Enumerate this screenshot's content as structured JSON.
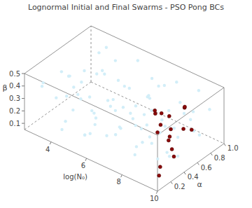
{
  "chart_data": {
    "type": "scatter3d",
    "title": "Lognormal Initial and Final Swarms - PSO Pong BCs",
    "x_label": "log(N₀)",
    "y_label": "α",
    "z_label": "β",
    "xlim": [
      2.5,
      10
    ],
    "xticks": [
      4,
      6,
      8,
      10
    ],
    "ylim": [
      0,
      1
    ],
    "yticks": [
      0.2,
      0.4,
      0.6,
      0.8,
      {
        "value": 1,
        "label": "1.0"
      }
    ],
    "zlim": [
      0.05,
      0.5
    ],
    "zticks": [
      0.1,
      0.2,
      0.3,
      0.4,
      0.5
    ],
    "series": [
      {
        "color": "#d2eef8",
        "marker": "circle",
        "points": [
          [
            3.1,
            0.12,
            0.42
          ],
          [
            4.2,
            0.35,
            0.31
          ],
          [
            5.6,
            0.08,
            0.18
          ],
          [
            6.8,
            0.77,
            0.45
          ],
          [
            7.9,
            0.22,
            0.12
          ],
          [
            9.1,
            0.64,
            0.37
          ],
          [
            3.6,
            0.91,
            0.22
          ],
          [
            4.9,
            0.53,
            0.48
          ],
          [
            6.1,
            0.41,
            0.09
          ],
          [
            7.3,
            0.15,
            0.33
          ],
          [
            8.6,
            0.87,
            0.2
          ],
          [
            9.7,
            0.33,
            0.41
          ],
          [
            2.8,
            0.6,
            0.27
          ],
          [
            4.5,
            0.72,
            0.14
          ],
          [
            5.2,
            0.26,
            0.39
          ],
          [
            6.5,
            0.95,
            0.3
          ],
          [
            7.6,
            0.48,
            0.24
          ],
          [
            8.9,
            0.05,
            0.46
          ],
          [
            3.9,
            0.19,
            0.07
          ],
          [
            5.9,
            0.67,
            0.35
          ],
          [
            7.1,
            0.84,
            0.11
          ],
          [
            8.2,
            0.39,
            0.43
          ],
          [
            9.4,
            0.79,
            0.16
          ],
          [
            3.3,
            0.45,
            0.36
          ],
          [
            4.7,
            0.03,
            0.25
          ],
          [
            6.3,
            0.58,
            0.21
          ],
          [
            7.8,
            0.69,
            0.49
          ],
          [
            9.9,
            0.17,
            0.29
          ],
          [
            2.6,
            0.83,
            0.12
          ],
          [
            5.4,
            0.93,
            0.44
          ],
          [
            6.9,
            0.31,
            0.4
          ],
          [
            8.4,
            0.11,
            0.26
          ],
          [
            4.1,
            0.62,
            0.05
          ],
          [
            5.7,
            0.44,
            0.28
          ],
          [
            7.4,
            0.98,
            0.38
          ],
          [
            9.2,
            0.52,
            0.08
          ],
          [
            3.5,
            0.29,
            0.47
          ],
          [
            6.0,
            0.14,
            0.32
          ],
          [
            8.0,
            0.57,
            0.17
          ],
          [
            9.6,
            0.89,
            0.34
          ],
          [
            2.9,
            0.37,
            0.19
          ],
          [
            4.4,
            0.86,
            0.4
          ],
          [
            5.0,
            0.7,
            0.1
          ],
          [
            6.6,
            0.24,
            0.47
          ],
          [
            7.2,
            0.63,
            0.06
          ],
          [
            8.7,
            0.46,
            0.31
          ],
          [
            3.8,
            0.74,
            0.3
          ],
          [
            5.3,
            0.16,
            0.13
          ],
          [
            6.2,
            0.88,
            0.23
          ],
          [
            7.7,
            0.06,
            0.38
          ],
          [
            9.0,
            0.27,
            0.14
          ],
          [
            4.0,
            0.5,
            0.43
          ],
          [
            5.8,
            0.97,
            0.16
          ],
          [
            7.0,
            0.43,
            0.27
          ],
          [
            8.3,
            0.76,
            0.08
          ],
          [
            9.8,
            0.59,
            0.45
          ],
          [
            3.2,
            0.66,
            0.09
          ],
          [
            4.8,
            0.4,
            0.2
          ],
          [
            6.4,
            0.02,
            0.34
          ],
          [
            8.8,
            0.94,
            0.42
          ],
          [
            2.7,
            0.21,
            0.33
          ],
          [
            5.1,
            0.81,
            0.26
          ],
          [
            6.7,
            0.55,
            0.15
          ],
          [
            8.1,
            0.28,
            0.21
          ],
          [
            9.3,
            0.1,
            0.35
          ],
          [
            3.4,
            0.99,
            0.39
          ],
          [
            4.6,
            0.18,
            0.46
          ],
          [
            6.9,
            0.71,
            0.32
          ],
          [
            7.5,
            0.34,
            0.44
          ],
          [
            9.5,
            0.68,
            0.24
          ],
          [
            3.0,
            0.5,
            0.16
          ],
          [
            4.3,
            0.25,
            0.23
          ],
          [
            5.5,
            0.61,
            0.41
          ],
          [
            7.9,
            0.9,
            0.28
          ],
          [
            8.5,
            0.2,
            0.49
          ],
          [
            9.1,
            0.42,
            0.11
          ],
          [
            5.0,
            0.32,
            0.06
          ],
          [
            6.8,
            0.09,
            0.25
          ],
          [
            3.7,
            0.8,
            0.44
          ],
          [
            8.2,
            0.65,
            0.33
          ]
        ]
      },
      {
        "color": "#8b0a0a",
        "marker": "circle",
        "points": [
          [
            8.6,
            0.55,
            0.35
          ],
          [
            7.9,
            0.62,
            0.3
          ],
          [
            7.7,
            0.58,
            0.3
          ],
          [
            8.3,
            0.5,
            0.28
          ],
          [
            8.8,
            0.52,
            0.27
          ],
          [
            9.0,
            0.45,
            0.25
          ],
          [
            8.5,
            0.4,
            0.27
          ],
          [
            9.2,
            0.38,
            0.26
          ],
          [
            9.5,
            0.35,
            0.22
          ],
          [
            9.8,
            0.3,
            0.2
          ],
          [
            9.7,
            0.12,
            0.18
          ],
          [
            9.9,
            0.05,
            0.15
          ],
          [
            9.4,
            0.55,
            0.3
          ],
          [
            9.6,
            0.62,
            0.28
          ],
          [
            8.9,
            0.7,
            0.38
          ],
          [
            9.1,
            0.65,
            0.42
          ],
          [
            7.6,
            0.6,
            0.31
          ]
        ]
      }
    ]
  }
}
